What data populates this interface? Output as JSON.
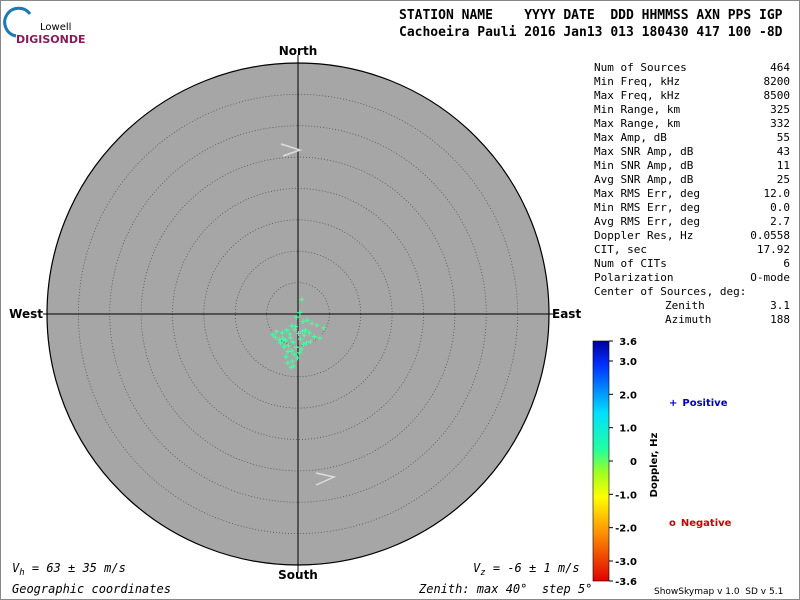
{
  "header": {
    "logo_top": "Lowell",
    "logo_bottom": "DIGISONDE",
    "columns": "STATION NAME    YYYY DATE  DDD HHMMSS AXN PPS IGP",
    "values": "Cachoeira Pauli 2016 Jan13 013 180430 417 100 -8D"
  },
  "stats": {
    "rows": [
      [
        "Num of Sources",
        "464"
      ],
      [
        "Min Freq, kHz",
        "8200"
      ],
      [
        "Max Freq, kHz",
        "8500"
      ],
      [
        "Min Range, km",
        "325"
      ],
      [
        "Max Range, km",
        "332"
      ],
      [
        "Max Amp, dB",
        "55"
      ],
      [
        "Max SNR Amp, dB",
        "43"
      ],
      [
        "Min SNR Amp, dB",
        "11"
      ],
      [
        "Avg SNR Amp, dB",
        "25"
      ],
      [
        "Max RMS Err, deg",
        "12.0"
      ],
      [
        "Min RMS Err, deg",
        "0.0"
      ],
      [
        "Avg RMS Err, deg",
        "2.7"
      ],
      [
        "Doppler Res, Hz",
        "0.0558"
      ],
      [
        "CIT, sec",
        "17.92"
      ],
      [
        "Num of CITs",
        "6"
      ],
      [
        "Polarization",
        "O-mode"
      ]
    ],
    "center_label": "Center of Sources, deg:",
    "center_rows": [
      [
        "Zenith",
        "3.1"
      ],
      [
        "Azimuth",
        "188"
      ]
    ]
  },
  "chart_data": {
    "type": "skymap",
    "directions": {
      "north": "North",
      "south": "South",
      "east": "East",
      "west": "West"
    },
    "xlim": [
      -40,
      40
    ],
    "ylim": [
      -40,
      40
    ],
    "rings": [
      5,
      10,
      15,
      20,
      25,
      30,
      35,
      40
    ],
    "series": [
      {
        "name": "Positive",
        "color": "#40ffa0",
        "x": [
          0.6,
          0.3,
          -0.2,
          0.8,
          1.5,
          2.2,
          3.0,
          4.1,
          -1.0,
          -1.8,
          -2.5,
          -3.4,
          -4.0,
          -0.5,
          0.1,
          1.0,
          -1.2,
          -2.0,
          -0.8,
          0.4,
          1.8,
          2.6,
          -3.0,
          -1.5,
          -0.3,
          0.9,
          -2.2,
          -1.0,
          0.2,
          -0.6,
          -1.6,
          -2.8,
          1.2,
          3.5,
          -0.1,
          -1.9,
          -0.9,
          0.5,
          -3.6,
          2.0,
          -1.3,
          -0.4,
          0.7,
          -2.4,
          1.4,
          -0.7,
          -1.1,
          -1.6
        ],
        "values": [
          2.3,
          0.2,
          -0.5,
          -1.2,
          -1.0,
          -1.5,
          -1.8,
          -2.2,
          -1.9,
          -2.6,
          -3.0,
          -2.8,
          -3.3,
          -2.5,
          -3.1,
          -3.4,
          -3.8,
          -4.2,
          -4.5,
          -4.0,
          -3.0,
          -3.6,
          -4.1,
          -5.0,
          -5.3,
          -4.8,
          -5.2,
          -5.9,
          -6.2,
          -6.5,
          -6.0,
          -4.6,
          -2.6,
          -3.8,
          -7.0,
          -6.8,
          -7.5,
          -5.6,
          -3.7,
          -4.4,
          -3.2,
          -2.0,
          -2.8,
          -3.9,
          -4.6,
          -8.3,
          -8.5,
          -7.8
        ]
      }
    ],
    "legend": [
      {
        "marker": "+",
        "name": "Positive",
        "color": "#0000c0"
      },
      {
        "marker": "o",
        "name": "Negative",
        "color": "#d00000"
      }
    ],
    "colorbar": {
      "label": "Doppler, Hz",
      "lim": [
        3.6,
        -3.6
      ],
      "ticks": [
        3.6,
        {
          "value": 3,
          "label": "3.0"
        },
        {
          "value": 2,
          "label": "2.0"
        },
        {
          "value": 1,
          "label": "1.0"
        },
        0,
        {
          "value": -1,
          "label": "-1.0"
        },
        {
          "value": -2,
          "label": "-2.0"
        },
        {
          "value": -3,
          "label": "-3.0"
        },
        -3.6
      ]
    }
  },
  "footer": {
    "vh": {
      "symbol": "V",
      "sub": "h",
      "text": " = 63 ± 35 m/s"
    },
    "vz": {
      "symbol": "V",
      "sub": "z",
      "text": " = -6 ± 1 m/s"
    },
    "coords": "Geographic coordinates",
    "zenith": "Zenith: max 40°  step 5°",
    "version": "ShowSkymap v 1.0  SD v 5.1"
  }
}
